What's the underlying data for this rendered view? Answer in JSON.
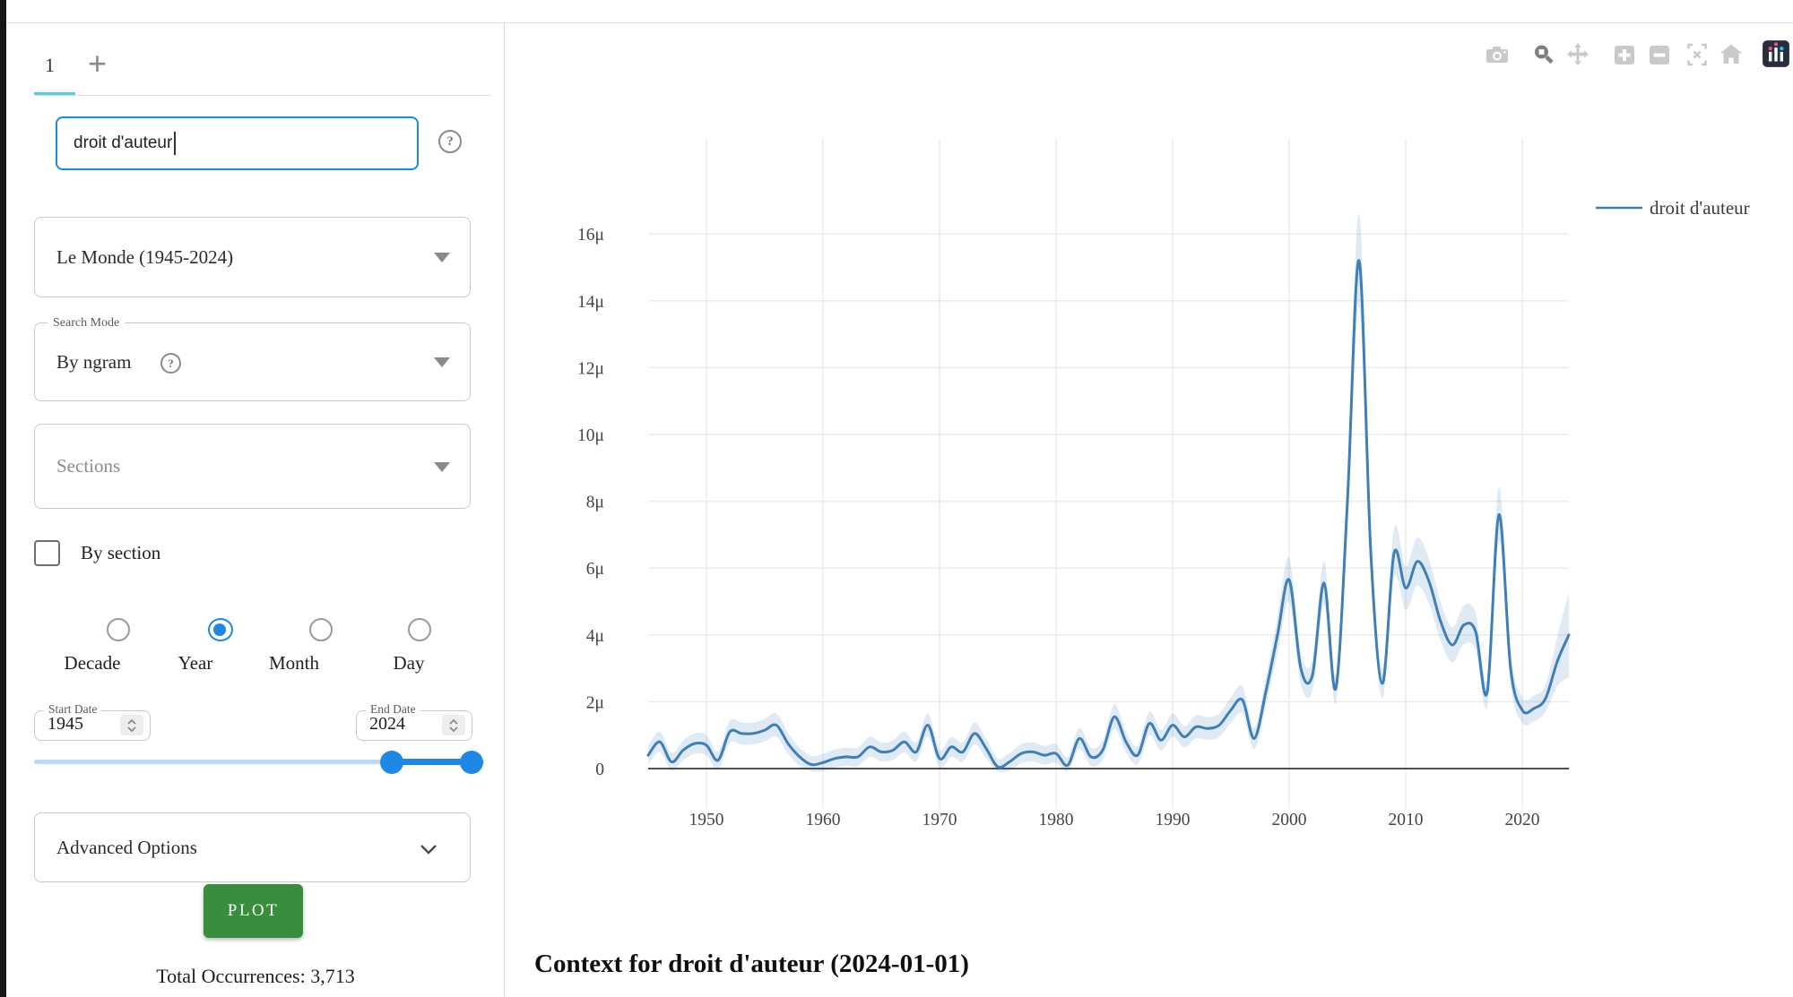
{
  "colors": {
    "accent_blue": "#1e88e5",
    "tab_underline_cyan": "#4dd0e1",
    "plot_button_green": "#388e3c",
    "line_blue": "#3e7fb8",
    "band_blue": "rgba(62,127,184,0.16)"
  },
  "sidebar": {
    "tab_bar": {
      "active_tab": "1",
      "add_button": "+"
    },
    "search": {
      "value": "droit d'auteur",
      "help_glyph": "?"
    },
    "corpus_select": {
      "value": "Le Monde (1945-2024)"
    },
    "search_mode": {
      "label": "Search Mode",
      "value": "By ngram",
      "help_glyph": "?"
    },
    "sections_select": {
      "placeholder": "Sections"
    },
    "by_section_checkbox": {
      "label": "By section",
      "checked": false
    },
    "resolution_radios": {
      "options": [
        "Decade",
        "Year",
        "Month",
        "Day"
      ],
      "selected": "Year"
    },
    "start_date": {
      "label": "Start Date",
      "value": "1945"
    },
    "end_date": {
      "label": "End Date",
      "value": "2024"
    },
    "advanced_options": {
      "label": "Advanced Options"
    },
    "plot_button": {
      "label": "PLOT"
    },
    "total_occurrences": "Total Occurrences: 3,713"
  },
  "main": {
    "modebar": {
      "icons": [
        "camera-icon",
        "zoom-icon",
        "pan-icon",
        "zoom-in-icon",
        "zoom-out-icon",
        "autoscale-icon",
        "reset-axes-home-icon",
        "plotly-logo-icon"
      ],
      "active_icon": "zoom-icon"
    },
    "context_heading": "Context for droit d'auteur (2024-01-01)"
  },
  "chart_data": {
    "type": "line",
    "title": "",
    "xlabel": "",
    "ylabel": "",
    "grid": true,
    "legend_position": "right",
    "xlim": [
      1945,
      2024
    ],
    "ylim": [
      -1.2,
      18.8
    ],
    "xticks": [
      1950,
      1960,
      1970,
      1980,
      1990,
      2000,
      2010,
      2020
    ],
    "yticks": [
      [
        0,
        "0"
      ],
      [
        2,
        "2μ"
      ],
      [
        4,
        "4μ"
      ],
      [
        6,
        "6μ"
      ],
      [
        8,
        "8μ"
      ],
      [
        10,
        "10μ"
      ],
      [
        12,
        "12μ"
      ],
      [
        14,
        "14μ"
      ],
      [
        16,
        "16μ"
      ]
    ],
    "x": [
      1945,
      1946,
      1947,
      1948,
      1949,
      1950,
      1951,
      1952,
      1953,
      1954,
      1955,
      1956,
      1957,
      1958,
      1959,
      1960,
      1961,
      1962,
      1963,
      1964,
      1965,
      1966,
      1967,
      1968,
      1969,
      1970,
      1971,
      1972,
      1973,
      1974,
      1975,
      1976,
      1977,
      1978,
      1979,
      1980,
      1981,
      1982,
      1983,
      1984,
      1985,
      1986,
      1987,
      1988,
      1989,
      1990,
      1991,
      1992,
      1993,
      1994,
      1995,
      1996,
      1997,
      1998,
      1999,
      2000,
      2001,
      2002,
      2003,
      2004,
      2005,
      2006,
      2007,
      2008,
      2009,
      2010,
      2011,
      2012,
      2013,
      2014,
      2015,
      2016,
      2017,
      2018,
      2019,
      2020,
      2021,
      2022,
      2023,
      2024
    ],
    "series": [
      {
        "name": "droit d'auteur",
        "color": "#3e7fb8",
        "unit": "per million words (μ)",
        "values": [
          0.4,
          0.8,
          0.2,
          0.55,
          0.75,
          0.7,
          0.25,
          1.1,
          1.05,
          1.05,
          1.15,
          1.3,
          0.75,
          0.35,
          0.12,
          0.18,
          0.3,
          0.35,
          0.35,
          0.65,
          0.5,
          0.55,
          0.8,
          0.5,
          1.3,
          0.3,
          0.65,
          0.5,
          1.05,
          0.6,
          0.05,
          0.2,
          0.45,
          0.5,
          0.4,
          0.45,
          0.1,
          0.9,
          0.35,
          0.55,
          1.55,
          0.8,
          0.4,
          1.35,
          0.85,
          1.3,
          0.95,
          1.25,
          1.2,
          1.3,
          1.75,
          2.05,
          0.9,
          2.3,
          4.0,
          5.65,
          3.0,
          2.8,
          5.55,
          2.4,
          8.0,
          15.2,
          6.5,
          2.55,
          6.45,
          5.4,
          6.2,
          5.6,
          4.4,
          3.7,
          4.3,
          4.1,
          2.3,
          7.6,
          3.0,
          1.75,
          1.8,
          2.1,
          3.2,
          4.0
        ]
      }
    ],
    "band": {
      "base": 0.25,
      "slope": 0.075,
      "end_boost": 2.3
    }
  }
}
